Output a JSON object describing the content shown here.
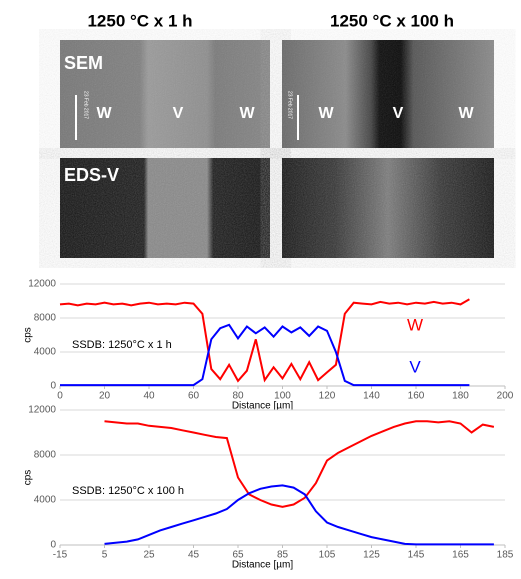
{
  "panels": {
    "titles": [
      "1250 °C x 1 h",
      "1250 °C x 100 h"
    ],
    "sem_label": "SEM",
    "eds_label": "EDS-V",
    "left_labels": [
      "W",
      "V",
      "W"
    ],
    "right_labels": [
      "W",
      "V",
      "W"
    ],
    "scale_dates": [
      "23 Feb 2017",
      "23 Feb 2017"
    ]
  },
  "chart_data": [
    {
      "type": "line",
      "annotation": "SSDB: 1250°C x 1 h",
      "x_label": "Distance [µm]",
      "y_label": "cps",
      "xlim": [
        0,
        200
      ],
      "ylim": [
        0,
        12000
      ],
      "xticks": [
        0,
        20,
        40,
        60,
        80,
        100,
        120,
        140,
        160,
        180,
        200
      ],
      "yticks": [
        0,
        4000,
        8000,
        12000
      ],
      "x": [
        0,
        4,
        8,
        12,
        16,
        20,
        24,
        28,
        32,
        36,
        40,
        44,
        48,
        52,
        56,
        60,
        64,
        68,
        72,
        76,
        80,
        84,
        88,
        92,
        96,
        100,
        104,
        108,
        112,
        116,
        120,
        124,
        128,
        132,
        136,
        140,
        144,
        148,
        152,
        156,
        160,
        164,
        168,
        172,
        176,
        180,
        184
      ],
      "series": [
        {
          "name": "W",
          "color": "#ff0000",
          "values": [
            9600,
            9700,
            9500,
            9700,
            9600,
            9800,
            9600,
            9700,
            9500,
            9700,
            9800,
            9600,
            9700,
            9600,
            9800,
            9700,
            8500,
            2000,
            800,
            2500,
            600,
            1800,
            5500,
            700,
            2200,
            900,
            2600,
            800,
            2800,
            700,
            1600,
            2500,
            8500,
            9800,
            9700,
            9600,
            9900,
            9700,
            9800,
            9600,
            9800,
            9700,
            9900,
            9700,
            9800,
            9600,
            10200
          ]
        },
        {
          "name": "V",
          "color": "#0000ff",
          "values": [
            100,
            100,
            100,
            100,
            100,
            100,
            100,
            100,
            100,
            100,
            100,
            100,
            100,
            100,
            100,
            100,
            800,
            5500,
            6800,
            7200,
            5600,
            7000,
            6200,
            6900,
            5800,
            7000,
            6300,
            6900,
            5900,
            7000,
            6500,
            4000,
            600,
            100,
            100,
            100,
            100,
            100,
            100,
            100,
            100,
            100,
            100,
            100,
            100,
            100,
            100
          ]
        }
      ]
    },
    {
      "type": "line",
      "annotation": "SSDB: 1250°C x 100 h",
      "x_label": "Distance [µm]",
      "y_label": "cps",
      "xlim": [
        -15,
        185
      ],
      "ylim": [
        0,
        12000
      ],
      "xticks": [
        -15,
        5,
        25,
        45,
        65,
        85,
        105,
        125,
        145,
        165,
        185
      ],
      "yticks": [
        0,
        4000,
        8000,
        12000
      ],
      "x": [
        5,
        10,
        15,
        20,
        25,
        30,
        35,
        40,
        45,
        50,
        55,
        60,
        65,
        70,
        75,
        80,
        85,
        90,
        95,
        100,
        105,
        110,
        115,
        120,
        125,
        130,
        135,
        140,
        145,
        150,
        155,
        160,
        165,
        170,
        175,
        180
      ],
      "series": [
        {
          "color": "#ff0000",
          "values": [
            11000,
            10900,
            10800,
            10800,
            10600,
            10500,
            10400,
            10200,
            10000,
            9800,
            9600,
            9500,
            6000,
            4500,
            4000,
            3600,
            3400,
            3600,
            4200,
            5500,
            7500,
            8200,
            8700,
            9200,
            9700,
            10100,
            10500,
            10800,
            11000,
            11000,
            10900,
            11000,
            10800,
            10000,
            10700,
            10500
          ]
        },
        {
          "color": "#0000ff",
          "values": [
            100,
            200,
            300,
            500,
            900,
            1300,
            1600,
            1900,
            2200,
            2500,
            2800,
            3200,
            4000,
            4600,
            5000,
            5200,
            5300,
            5100,
            4500,
            3000,
            2000,
            1600,
            1300,
            1000,
            700,
            500,
            300,
            100,
            50,
            50,
            50,
            50,
            50,
            50,
            50,
            50
          ]
        }
      ]
    }
  ]
}
